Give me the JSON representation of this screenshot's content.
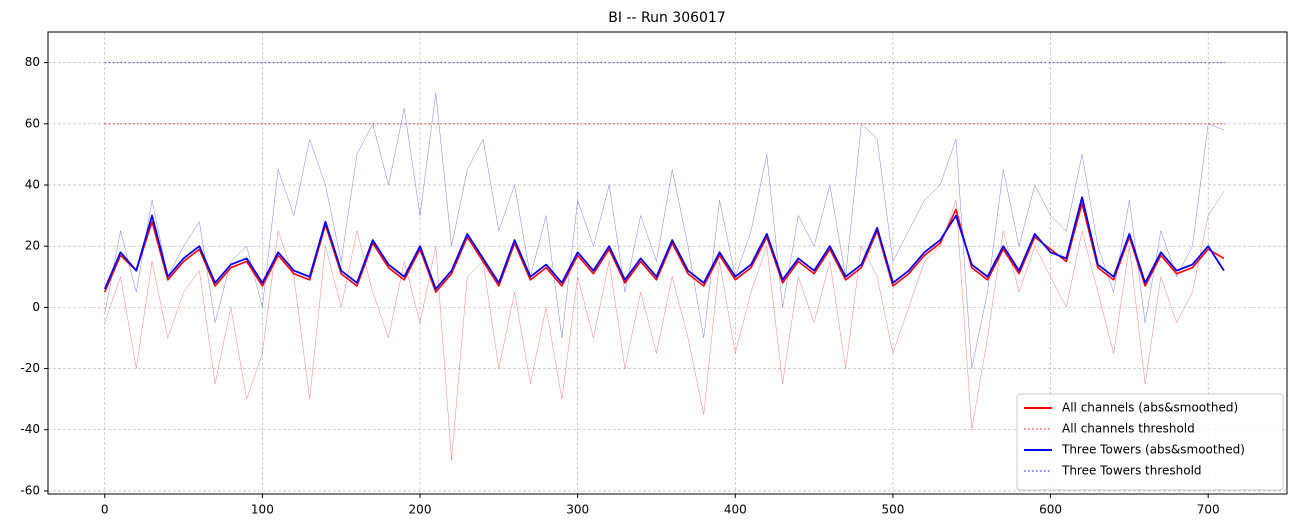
{
  "chart_data": {
    "type": "line",
    "title": "BI -- Run 306017",
    "x": [
      0,
      10,
      20,
      30,
      40,
      50,
      60,
      70,
      80,
      90,
      100,
      110,
      120,
      130,
      140,
      150,
      160,
      170,
      180,
      190,
      200,
      210,
      220,
      230,
      240,
      250,
      260,
      270,
      280,
      290,
      300,
      310,
      320,
      330,
      340,
      350,
      360,
      370,
      380,
      390,
      400,
      410,
      420,
      430,
      440,
      450,
      460,
      470,
      480,
      490,
      500,
      510,
      520,
      530,
      540,
      550,
      560,
      570,
      580,
      590,
      600,
      610,
      620,
      630,
      640,
      650,
      660,
      670,
      680,
      690,
      700,
      710
    ],
    "series": [
      {
        "name": "All channels (abs&smoothed)",
        "color": "#ff0000",
        "linestyle": "solid",
        "linewidth": 1.6,
        "opacity": 1,
        "values": [
          5,
          17,
          12,
          28,
          9,
          15,
          19,
          7,
          13,
          15,
          7,
          17,
          11,
          9,
          27,
          11,
          7,
          21,
          13,
          9,
          19,
          5,
          11,
          23,
          15,
          7,
          21,
          9,
          13,
          7,
          17,
          11,
          19,
          8,
          15,
          9,
          21,
          11,
          7,
          17,
          9,
          13,
          23,
          8,
          15,
          11,
          19,
          9,
          13,
          25,
          7,
          11,
          17,
          21,
          32,
          13,
          9,
          19,
          11,
          23,
          19,
          15,
          34,
          13,
          9,
          23,
          7,
          17,
          11,
          13,
          19,
          16
        ]
      },
      {
        "name": "All channels threshold",
        "color": "#ff0000",
        "linestyle": "dotted",
        "linewidth": 1.4,
        "opacity": 0.6,
        "x": [
          0,
          711
        ],
        "values": [
          60,
          60
        ]
      },
      {
        "name": "Three Towers (abs&smoothed)",
        "color": "#0000ff",
        "linestyle": "solid",
        "linewidth": 1.8,
        "opacity": 1,
        "values": [
          6,
          18,
          12,
          30,
          10,
          16,
          20,
          8,
          14,
          16,
          8,
          18,
          12,
          10,
          28,
          12,
          8,
          22,
          14,
          10,
          20,
          6,
          12,
          24,
          16,
          8,
          22,
          10,
          14,
          8,
          18,
          12,
          20,
          9,
          16,
          10,
          22,
          12,
          8,
          18,
          10,
          14,
          24,
          9,
          16,
          12,
          20,
          10,
          14,
          26,
          8,
          12,
          18,
          22,
          30,
          14,
          10,
          20,
          12,
          24,
          18,
          16,
          36,
          14,
          10,
          24,
          8,
          18,
          12,
          14,
          20,
          12
        ]
      },
      {
        "name": "Three Towers threshold",
        "color": "#0000ff",
        "linestyle": "dotted",
        "linewidth": 1.4,
        "opacity": 0.6,
        "x": [
          0,
          711
        ],
        "values": [
          80,
          80
        ]
      },
      {
        "color": "#ff0000",
        "linestyle": "solid",
        "linewidth": 0.5,
        "opacity": 0.5,
        "values": [
          -5,
          10,
          -20,
          15,
          -10,
          5,
          12,
          -25,
          0,
          -30,
          -15,
          25,
          10,
          -30,
          20,
          0,
          25,
          5,
          -10,
          15,
          -5,
          20,
          -50,
          10,
          15,
          -20,
          5,
          -25,
          0,
          -30,
          10,
          -10,
          15,
          -20,
          5,
          -15,
          10,
          -10,
          -35,
          15,
          -15,
          5,
          20,
          -25,
          10,
          -5,
          15,
          -20,
          20,
          10,
          -15,
          0,
          15,
          20,
          35,
          -40,
          -10,
          25,
          5,
          20,
          10,
          0,
          25,
          5,
          -15,
          20,
          -25,
          10,
          -5,
          5,
          30,
          38
        ]
      },
      {
        "color": "#0000ff",
        "linestyle": "solid",
        "linewidth": 0.5,
        "opacity": 0.5,
        "values": [
          -2,
          25,
          5,
          35,
          10,
          20,
          28,
          -5,
          15,
          20,
          0,
          45,
          30,
          55,
          40,
          15,
          50,
          60,
          40,
          65,
          30,
          70,
          20,
          45,
          55,
          25,
          40,
          10,
          30,
          -10,
          35,
          20,
          40,
          5,
          30,
          15,
          45,
          20,
          -10,
          35,
          10,
          25,
          50,
          0,
          30,
          20,
          40,
          10,
          60,
          55,
          15,
          25,
          35,
          40,
          55,
          -20,
          5,
          45,
          20,
          40,
          30,
          25,
          50,
          20,
          5,
          35,
          -5,
          25,
          10,
          20,
          60,
          58
        ]
      }
    ],
    "xlim": [
      -36,
      750
    ],
    "ylim": [
      -61,
      90
    ],
    "xticks": [
      0,
      100,
      200,
      300,
      400,
      500,
      600,
      700
    ],
    "yticks": [
      -60,
      -40,
      -20,
      0,
      20,
      40,
      60,
      80
    ],
    "grid": true,
    "legend": "lower right"
  }
}
